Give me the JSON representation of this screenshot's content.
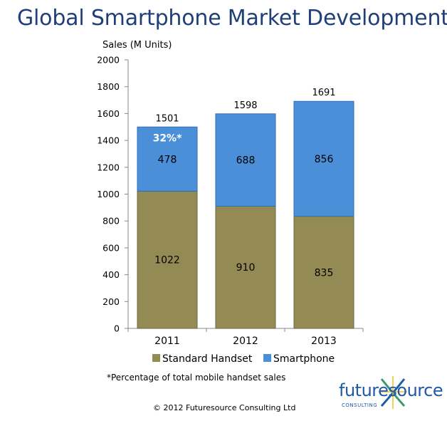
{
  "title": "Global Smartphone Market Development",
  "chart_data": {
    "type": "bar",
    "stacked": true,
    "title": "Global Smartphone Market Development",
    "ylabel": "Sales (M Units)",
    "xlabel": "",
    "ylim": [
      0,
      2000
    ],
    "ytick_step": 200,
    "yticks": [
      "0",
      "200",
      "400",
      "600",
      "800",
      "1000",
      "1200",
      "1400",
      "1600",
      "1800",
      "2000"
    ],
    "categories": [
      "2011",
      "2012",
      "2013"
    ],
    "series": [
      {
        "name": "Standard Handset",
        "values": [
          1022,
          910,
          835
        ],
        "color": "#948a54"
      },
      {
        "name": "Smartphone",
        "values": [
          478,
          688,
          856
        ],
        "color": "#4a8fd8"
      }
    ],
    "totals": [
      "1501",
      "1598",
      "1691"
    ],
    "annotations": [
      {
        "category": "2011",
        "series": "Smartphone",
        "text": "32%*"
      }
    ],
    "legend": "bottom",
    "grid": false
  },
  "footnote": "*Percentage of total mobile handset sales",
  "copyright": "© 2012 Futuresource Consulting Ltd",
  "logo": {
    "brand": "futuresource",
    "sub": "CONSULTING"
  },
  "colors": {
    "title": "#1f3f78",
    "standard": "#948a54",
    "smartphone": "#4a8fd8"
  }
}
